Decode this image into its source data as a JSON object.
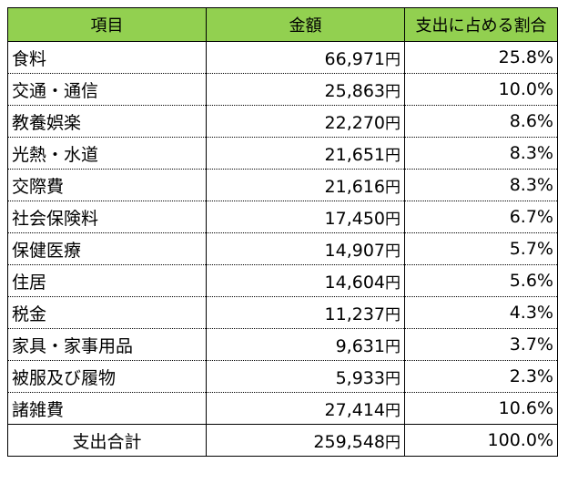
{
  "table": {
    "headers": {
      "item": "項目",
      "amount": "金額",
      "share": "支出に占める割合"
    },
    "rows": [
      {
        "item": "食料",
        "amount": "66,971",
        "unit": "円",
        "share": "25.8%"
      },
      {
        "item": "交通・通信",
        "amount": "25,863",
        "unit": "円",
        "share": "10.0%"
      },
      {
        "item": "教養娯楽",
        "amount": "22,270",
        "unit": "円",
        "share": "8.6%"
      },
      {
        "item": "光熱・水道",
        "amount": "21,651",
        "unit": "円",
        "share": "8.3%"
      },
      {
        "item": "交際費",
        "amount": "21,616",
        "unit": "円",
        "share": "8.3%"
      },
      {
        "item": "社会保険料",
        "amount": "17,450",
        "unit": "円",
        "share": "6.7%"
      },
      {
        "item": "保健医療",
        "amount": "14,907",
        "unit": "円",
        "share": "5.7%"
      },
      {
        "item": "住居",
        "amount": "14,604",
        "unit": "円",
        "share": "5.6%"
      },
      {
        "item": "税金",
        "amount": "11,237",
        "unit": "円",
        "share": "4.3%"
      },
      {
        "item": "家具・家事用品",
        "amount": "9,631",
        "unit": "円",
        "share": "3.7%"
      },
      {
        "item": "被服及び履物",
        "amount": "5,933",
        "unit": "円",
        "share": "2.3%"
      },
      {
        "item": "諸雑費",
        "amount": "27,414",
        "unit": "円",
        "share": "10.6%"
      }
    ],
    "total": {
      "label": "支出合計",
      "amount": "259,548",
      "unit": "円",
      "share": "100.0%"
    }
  },
  "colors": {
    "header_background": "#92d050",
    "border": "#000000"
  }
}
